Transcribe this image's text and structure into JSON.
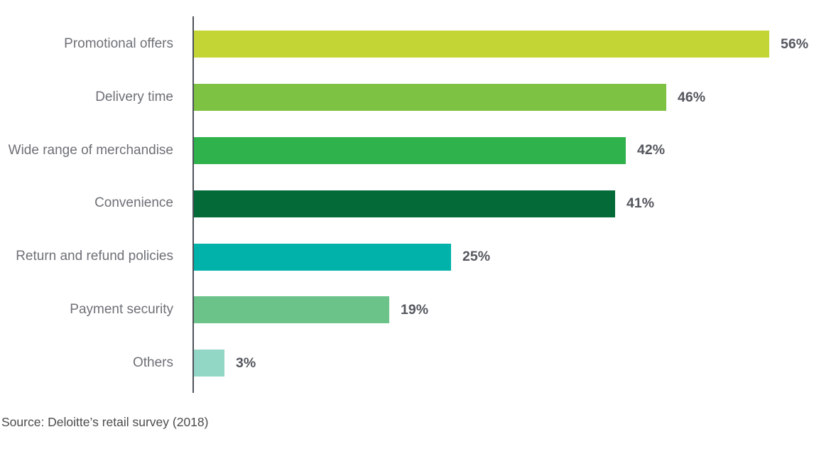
{
  "chart_data": {
    "type": "bar",
    "orientation": "horizontal",
    "categories": [
      "Promotional offers",
      "Delivery time",
      "Wide range of merchandise",
      "Convenience",
      "Return and refund policies",
      "Payment security",
      "Others"
    ],
    "values": [
      56,
      46,
      42,
      41,
      25,
      19,
      3
    ],
    "value_labels": [
      "56%",
      "46%",
      "42%",
      "41%",
      "25%",
      "19%",
      "3%"
    ],
    "bar_colors": [
      "#c3d534",
      "#7dc242",
      "#2fb24c",
      "#046a38",
      "#00b2a9",
      "#6bc38a",
      "#92d7c6"
    ],
    "title": "",
    "xlabel": "",
    "ylabel": "",
    "xlim": [
      0,
      60
    ],
    "grid": false,
    "legend": false,
    "axis_color": "#4d525a",
    "label_color": "#6d7076",
    "value_color": "#54575e"
  },
  "source_note": "Source: Deloitte’s retail survey (2018)"
}
